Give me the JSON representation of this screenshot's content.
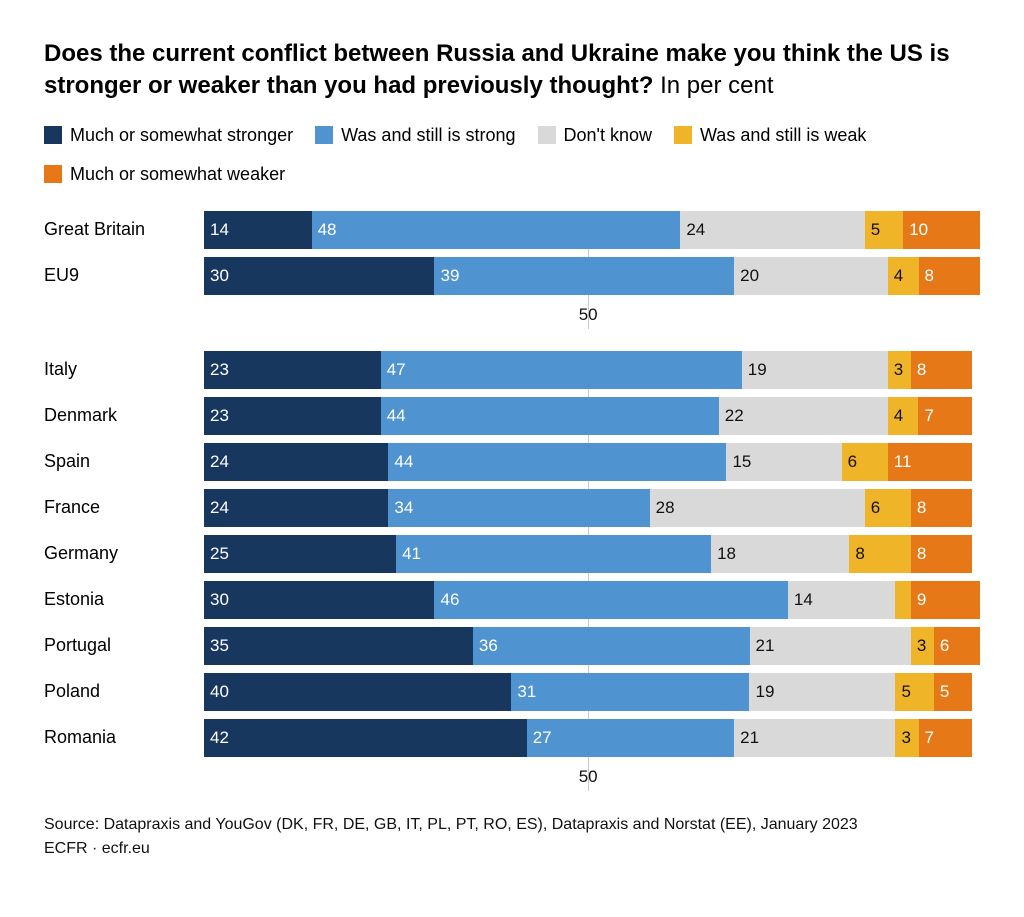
{
  "title_main": "Does the current conflict between Russia and Ukraine make you think the US is stronger or weaker than you had previously thought?",
  "title_unit": "In per cent",
  "legend": [
    {
      "label": "Much or somewhat stronger",
      "color": "#17375e",
      "text": "light"
    },
    {
      "label": "Was and still is strong",
      "color": "#4f93d1",
      "text": "light"
    },
    {
      "label": "Don't know",
      "color": "#d9d9d9",
      "text": "dark"
    },
    {
      "label": "Was and still is weak",
      "color": "#f0b429",
      "text": "dark"
    },
    {
      "label": "Much or somewhat weaker",
      "color": "#e67817",
      "text": "light"
    }
  ],
  "xlim": [
    0,
    101
  ],
  "tick": 50,
  "min_label_pct": 3,
  "groups": [
    {
      "rows": [
        {
          "label": "Great Britain",
          "values": [
            14,
            48,
            24,
            5,
            10
          ]
        },
        {
          "label": "EU9",
          "values": [
            30,
            39,
            20,
            4,
            8
          ]
        }
      ]
    },
    {
      "rows": [
        {
          "label": "Italy",
          "values": [
            23,
            47,
            19,
            3,
            8
          ]
        },
        {
          "label": "Denmark",
          "values": [
            23,
            44,
            22,
            4,
            7
          ]
        },
        {
          "label": "Spain",
          "values": [
            24,
            44,
            15,
            6,
            11
          ]
        },
        {
          "label": "France",
          "values": [
            24,
            34,
            28,
            6,
            8
          ]
        },
        {
          "label": "Germany",
          "values": [
            25,
            41,
            18,
            8,
            8
          ]
        },
        {
          "label": "Estonia",
          "values": [
            30,
            46,
            14,
            2,
            9
          ]
        },
        {
          "label": "Portugal",
          "values": [
            35,
            36,
            21,
            3,
            6
          ]
        },
        {
          "label": "Poland",
          "values": [
            40,
            31,
            19,
            5,
            5
          ]
        },
        {
          "label": "Romania",
          "values": [
            42,
            27,
            21,
            3,
            7
          ]
        }
      ]
    }
  ],
  "source_line1": "Source: Datapraxis and YouGov (DK, FR, DE, GB, IT, PL, PT, RO, ES), Datapraxis and Norstat (EE), January 2023",
  "source_line2": "ECFR · ecfr.eu",
  "label_exceptions": {
    "0-0-3": true,
    "1-7-3": true
  }
}
